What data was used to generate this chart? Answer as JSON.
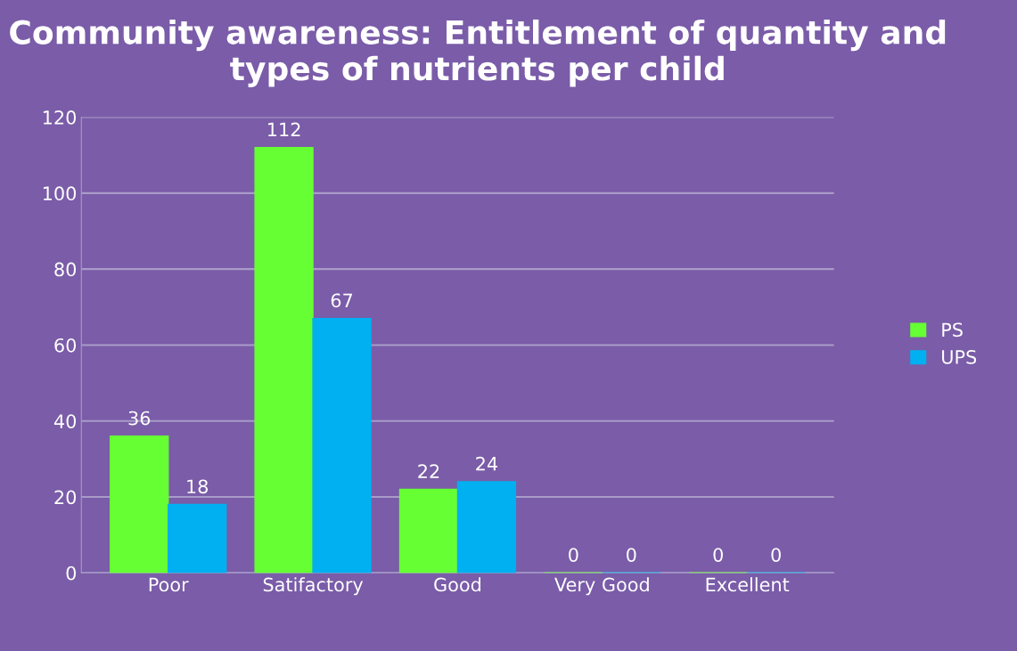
{
  "chart_data": {
    "type": "bar",
    "title": "Community awareness: Entitlement of quantity and types of nutrients per child",
    "categories": [
      "Poor",
      "Satifactory",
      "Good",
      "Very Good",
      "Excellent"
    ],
    "series": [
      {
        "name": "PS",
        "color": "#66ff33",
        "values": [
          36,
          112,
          22,
          0,
          0
        ]
      },
      {
        "name": "UPS",
        "color": "#00b0f0",
        "values": [
          18,
          67,
          24,
          0,
          0
        ]
      }
    ],
    "ylim": [
      0,
      120
    ],
    "yticks": [
      0,
      20,
      40,
      60,
      80,
      100,
      120
    ],
    "grid": "y",
    "legend": "right",
    "data_labels": true
  }
}
